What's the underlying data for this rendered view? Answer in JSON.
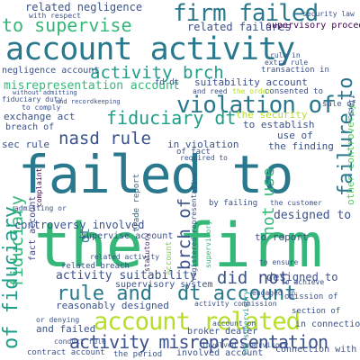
{
  "words": {
    "the_firm": "the firm",
    "failed_to": "failed to",
    "account_activity": "account activity",
    "account_related": "account related",
    "firm_failed": "firm failed",
    "violation_of": "violation of",
    "activity_misrepresentation": "activity misrepresentation",
    "fiduciary_dt": "fiduciary dt",
    "to_supervise": "to supervise",
    "rule_and": "rule and",
    "dt_account": "dt account",
    "nasd_rule": "nasd rule",
    "activity_brch": "activity brch",
    "did_not": "did not",
    "not_use": "not use",
    "failure_to": "failure to",
    "fiduciary_v": "fiduciary",
    "of_fiduciary": "of fiduciary",
    "brch_of": "brch of",
    "misrepresentation_account": "misrepresentation account",
    "related_negligence": "related negligence",
    "related_failures": "related failures",
    "negligence_account": "negligence account",
    "suitability_account": "suitability account",
    "supervisory_procedure": "supervisory procedure",
    "activity_suitability": "activity suitability",
    "controversy_involved": "controversy involved",
    "supervise_account": "supervise account",
    "supervisory_system": "supervisory system",
    "related_breach": "related breach",
    "broker_dealer": "broker dealer",
    "involved_account": "involved account",
    "connection_with": "connection with",
    "in_connection": "in connection",
    "designed_to": "designed to",
    "designed_to_2": "designed to",
    "to_establish": "to establish",
    "the_security": "the security",
    "in_violation": "in violation",
    "the_finding": "the finding",
    "use_of": "use of",
    "sec_rule": "sec rule",
    "exchange_act": "exchange act",
    "reasonably_designed": "reasonably designed",
    "and_failed": "and failed",
    "to_report": "to report",
    "contract_account": "contract account",
    "other_controversy": "other controversy",
    "transaction_in": "transaction in",
    "consented_to": "consented to",
    "sale_of": "sale of",
    "omission_of": "omission of",
    "section_of": "section of",
    "fact_account": "fact account",
    "trade_report": "trade report",
    "by_failing": "by failing",
    "breach_of": "breach of",
    "the_period": "the period",
    "to_achieve": "to achieve",
    "security_law": "security law",
    "with_respect": "with respect",
    "registered_representative": "registered representative",
    "extra_rule": "extra rule",
    "and_reed": "and reed",
    "the_order": "the order",
    "of_fact": "of fact",
    "conduct_rule": "conduct rule",
    "account_v": "account",
    "fd_dt": "fd dt",
    "dt_v": "dt",
    "supervisory_v": "supervisory",
    "the_customer": "the customer",
    "admitting_or": "admitting or",
    "or_denying": "or denying",
    "complaint": "complaint",
    "fiduciary_duty": "fiduciary duty",
    "engaged_in": "engaged in",
    "activity_commission": "activity commission",
    "involved_supervisory": "involved supervisory",
    "related_activity": "related activity",
    "to_comply": "to comply",
    "and_recordkeeping": "and recordkeeping",
    "statutory": "statutory",
    "fined": "fined",
    "account_on": "account on",
    "rule_in": "rule in",
    "without_admitting": "without admitting",
    "to_ensure": "to ensure",
    "the_supervisory": "the supervisory",
    "required_to": "required to"
  },
  "colors": {
    "teal_dark": "#23878d",
    "teal": "#2a788e",
    "green": "#35b779",
    "lime": "#b5de2b",
    "yellow_green": "#7ad151",
    "navy": "#3b528b",
    "purple": "#482777",
    "dark_purple": "#440154",
    "blue": "#31688e",
    "sea": "#1f9e89",
    "mint": "#5ec962",
    "indigo": "#414487"
  }
}
